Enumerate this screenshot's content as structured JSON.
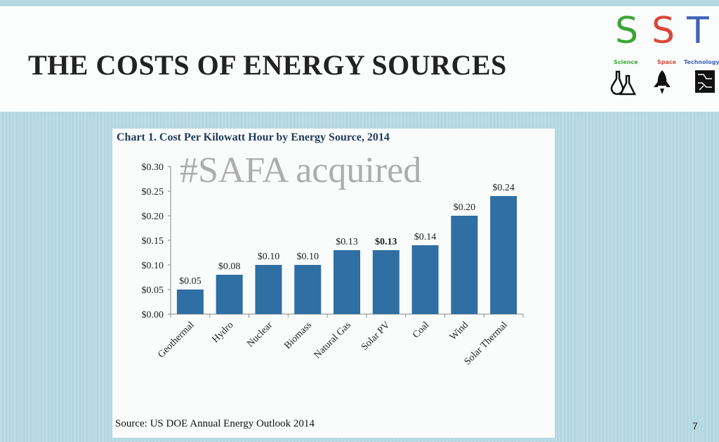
{
  "slide": {
    "title": "THE COSTS OF ENERGY SOURCES",
    "page_number": "7",
    "source": "Source: US DOE Annual Energy Outlook 2014",
    "watermark": "#SAFA acquired"
  },
  "logo": {
    "letters": [
      {
        "letter": "S",
        "label": "Science",
        "color": "#3aa635",
        "icon": "flask-icon"
      },
      {
        "letter": "S",
        "label": "Space",
        "color": "#d9473b",
        "icon": "rocket-icon"
      },
      {
        "letter": "T",
        "label": "Technology",
        "color": "#3f63b5",
        "icon": "circuit-icon"
      }
    ]
  },
  "chart_data": {
    "type": "bar",
    "title": "Chart 1. Cost Per Kilowatt Hour by Energy Source, 2014",
    "xlabel": "",
    "ylabel": "",
    "categories": [
      "Geothermal",
      "Hydro",
      "Nuclear",
      "Biomass",
      "Natural Gas",
      "Solar PV",
      "Coal",
      "Wind",
      "Solar Thermal"
    ],
    "values": [
      0.05,
      0.08,
      0.1,
      0.1,
      0.13,
      0.13,
      0.14,
      0.2,
      0.24
    ],
    "data_labels": [
      "$0.05",
      "$0.08",
      "$0.10",
      "$0.10",
      "$0.13",
      "$0.13",
      "$0.14",
      "$0.20",
      "$0.24"
    ],
    "ylim": [
      0,
      0.3
    ],
    "yticks": [
      0,
      0.05,
      0.1,
      0.15,
      0.2,
      0.25,
      0.3
    ],
    "ytick_labels": [
      "$0.00",
      "$0.05",
      "$0.10",
      "$0.15",
      "$0.20",
      "$0.25",
      "$0.30"
    ],
    "bar_color": "#2f6fa3",
    "grid": false,
    "legend": "none"
  }
}
